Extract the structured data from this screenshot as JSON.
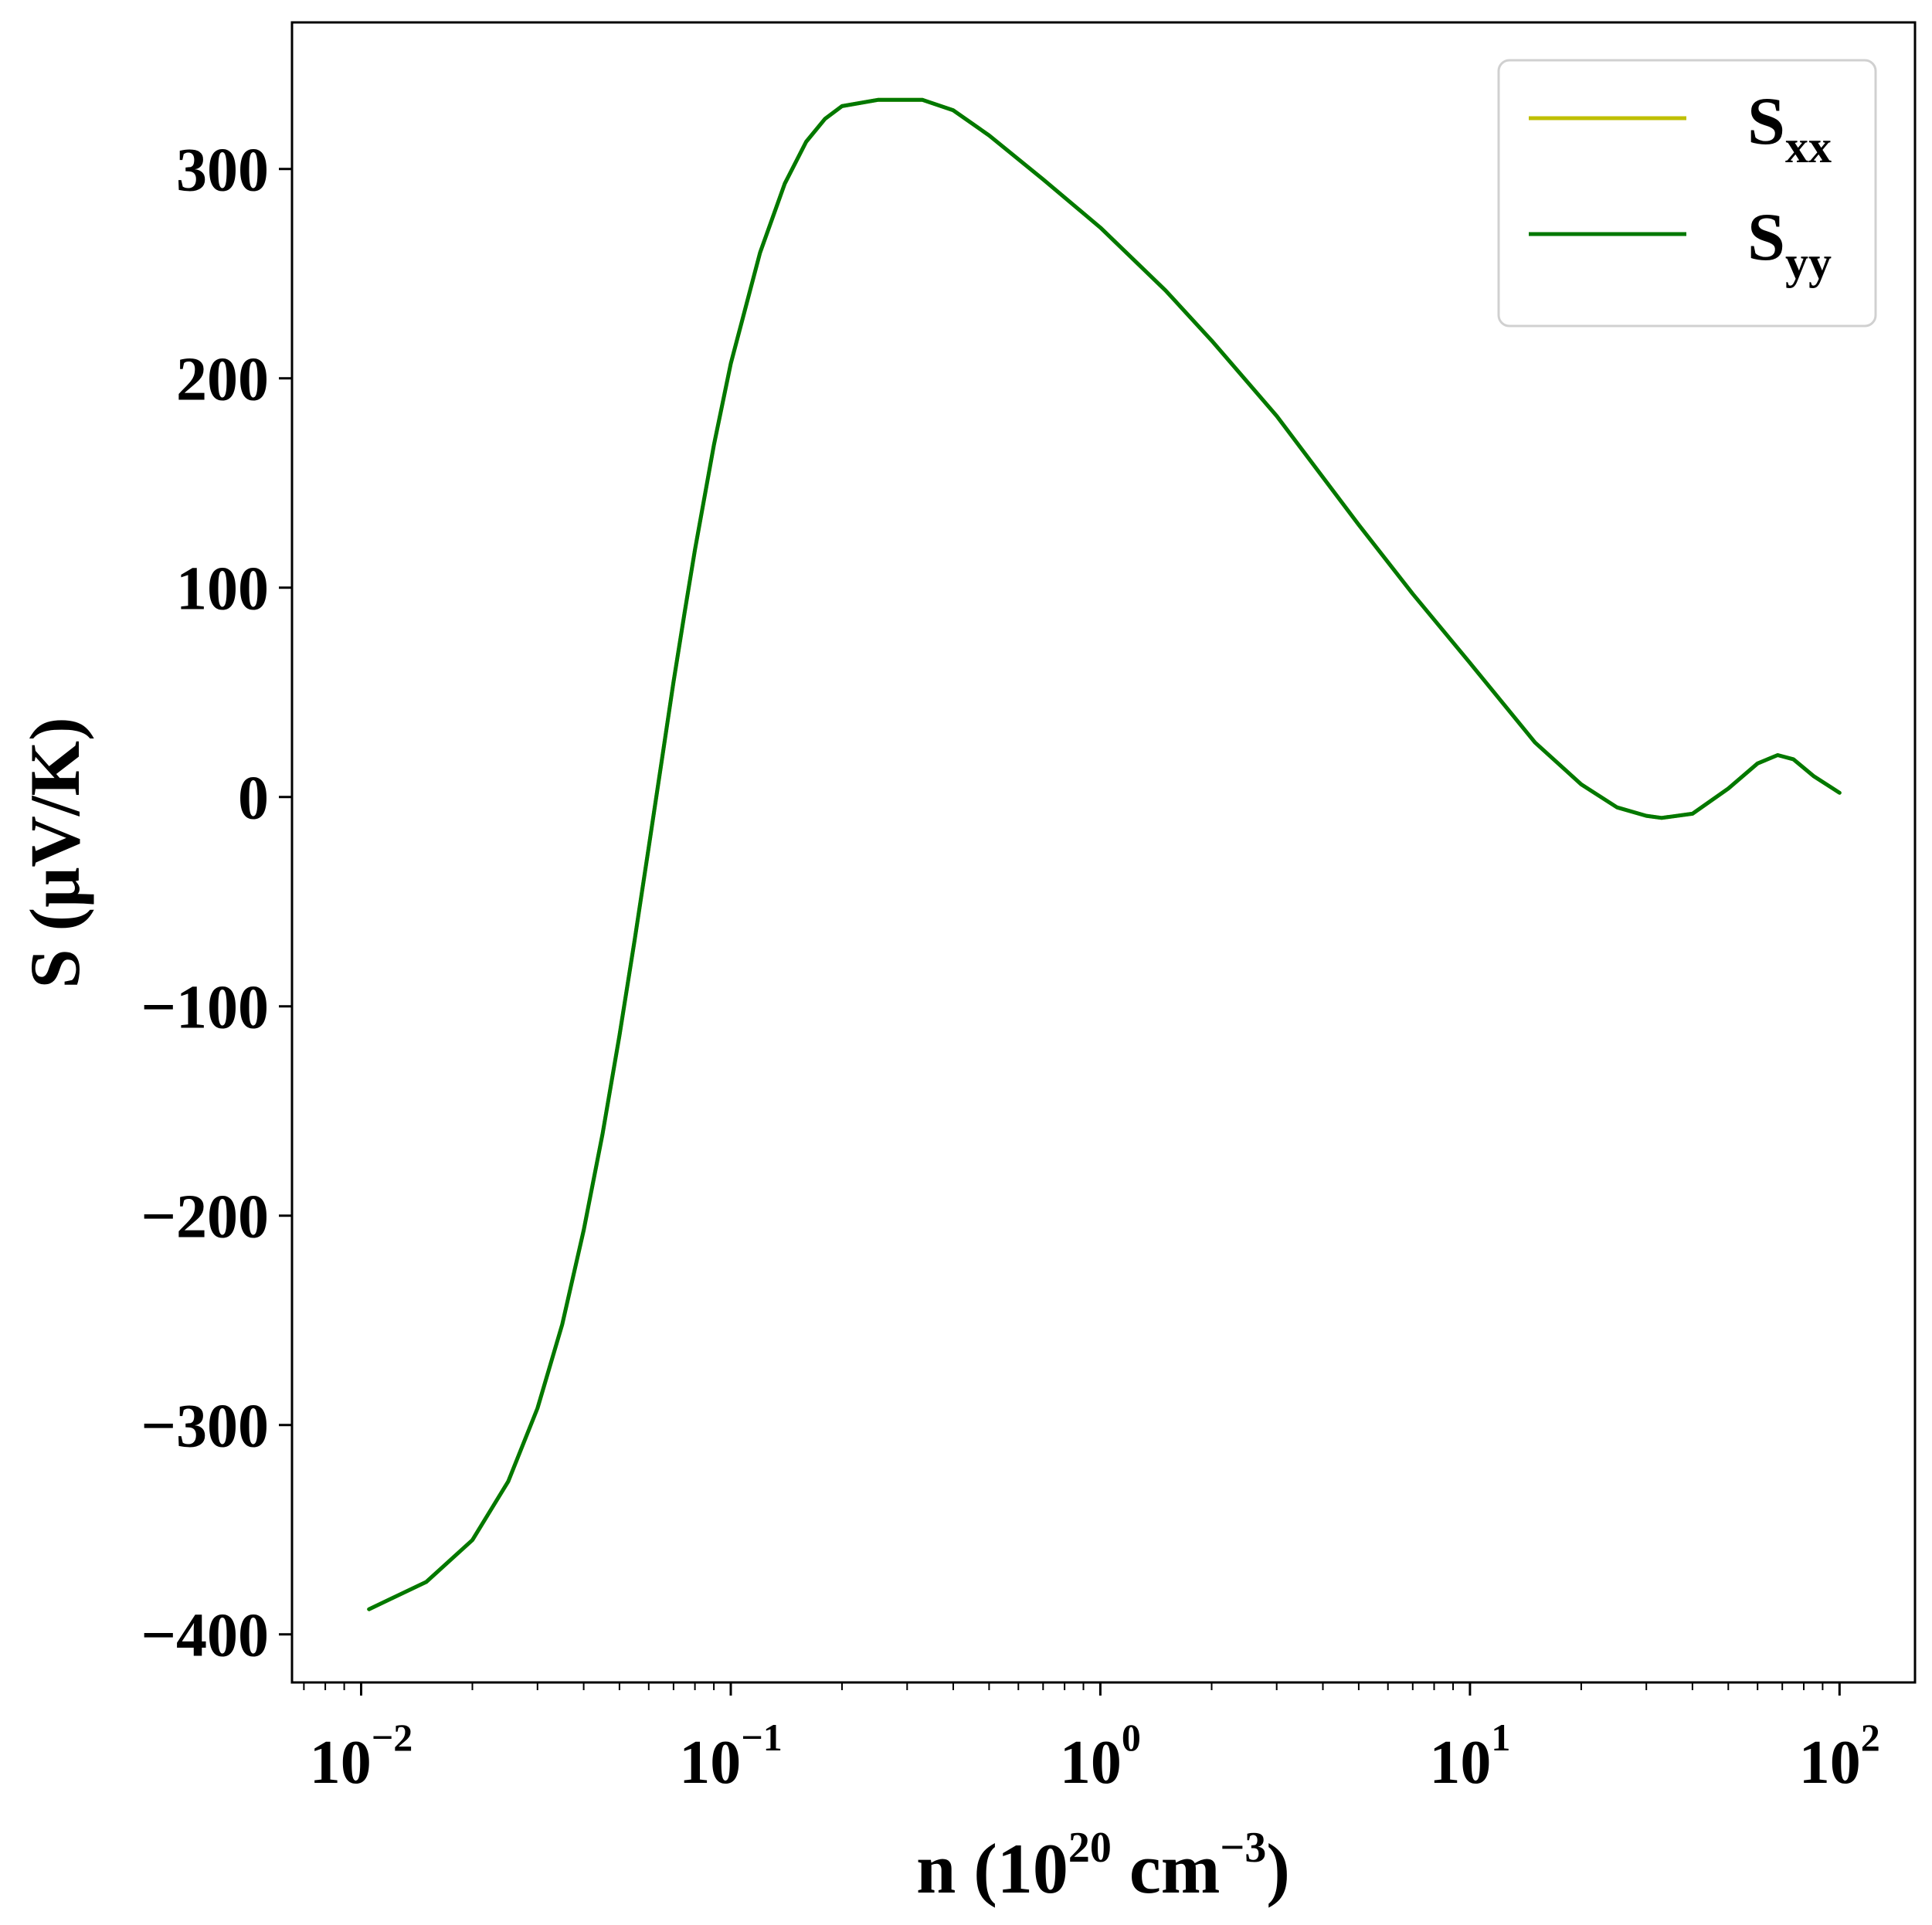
{
  "chart_data": {
    "type": "line",
    "xscale": "log",
    "xlim": [
      0.0065,
      160
    ],
    "ylim": [
      -423,
      370
    ],
    "xticks": [
      {
        "value": 0.01,
        "base": "10",
        "exp": "−2"
      },
      {
        "value": 0.1,
        "base": "10",
        "exp": "−1"
      },
      {
        "value": 1,
        "base": "10",
        "exp": "0"
      },
      {
        "value": 10,
        "base": "10",
        "exp": "1"
      },
      {
        "value": 100,
        "base": "10",
        "exp": "2"
      }
    ],
    "yticks": [
      {
        "value": 300,
        "label": "300"
      },
      {
        "value": 200,
        "label": "200"
      },
      {
        "value": 100,
        "label": "100"
      },
      {
        "value": 0,
        "label": "0"
      },
      {
        "value": -100,
        "label": "−100"
      },
      {
        "value": -200,
        "label": "−200"
      },
      {
        "value": -300,
        "label": "−300"
      },
      {
        "value": -400,
        "label": "−400"
      }
    ],
    "xlabel": {
      "prefix": "n (10",
      "sup1": "20",
      "mid": " cm",
      "sup2": "−3",
      "suffix": ")"
    },
    "ylabel": "S (μV/K)",
    "legend_position": "top-right",
    "series": [
      {
        "name": "S",
        "sub": "xx",
        "color": "#bfbf00",
        "x": [
          0.0105,
          0.015,
          0.02,
          0.025,
          0.03,
          0.035,
          0.04,
          0.045,
          0.05,
          0.055,
          0.06,
          0.065,
          0.07,
          0.075,
          0.08,
          0.09,
          0.1,
          0.12,
          0.14,
          0.16,
          0.18,
          0.2,
          0.25,
          0.3,
          0.33,
          0.4,
          0.5,
          0.7,
          1,
          1.5,
          2,
          3,
          5,
          7,
          10,
          15,
          20,
          25,
          30,
          33,
          40,
          50,
          60,
          68,
          75,
          85,
          100
        ],
        "y": [
          -388,
          -375,
          -355,
          -327,
          -292,
          -252,
          -207,
          -161,
          -114,
          -68,
          -24,
          17,
          55,
          88,
          118,
          168,
          207,
          260,
          293,
          313,
          324,
          330,
          333,
          333,
          333,
          328,
          316,
          295,
          272,
          242,
          218,
          182,
          130,
          97,
          64,
          26,
          6,
          -5,
          -9,
          -10,
          -8,
          4,
          16,
          20,
          18,
          10,
          2
        ]
      },
      {
        "name": "S",
        "sub": "yy",
        "color": "#007800",
        "x": [
          0.0105,
          0.015,
          0.02,
          0.025,
          0.03,
          0.035,
          0.04,
          0.045,
          0.05,
          0.055,
          0.06,
          0.065,
          0.07,
          0.075,
          0.08,
          0.09,
          0.1,
          0.12,
          0.14,
          0.16,
          0.18,
          0.2,
          0.25,
          0.3,
          0.33,
          0.4,
          0.5,
          0.7,
          1,
          1.5,
          2,
          3,
          5,
          7,
          10,
          15,
          20,
          25,
          30,
          33,
          40,
          50,
          60,
          68,
          75,
          85,
          100
        ],
        "y": [
          -388,
          -375,
          -355,
          -327,
          -292,
          -252,
          -207,
          -161,
          -114,
          -68,
          -24,
          17,
          55,
          88,
          118,
          168,
          207,
          260,
          293,
          313,
          324,
          330,
          333,
          333,
          333,
          328,
          316,
          295,
          272,
          242,
          218,
          182,
          130,
          97,
          64,
          26,
          6,
          -5,
          -9,
          -10,
          -8,
          4,
          16,
          20,
          18,
          10,
          2
        ]
      }
    ]
  }
}
